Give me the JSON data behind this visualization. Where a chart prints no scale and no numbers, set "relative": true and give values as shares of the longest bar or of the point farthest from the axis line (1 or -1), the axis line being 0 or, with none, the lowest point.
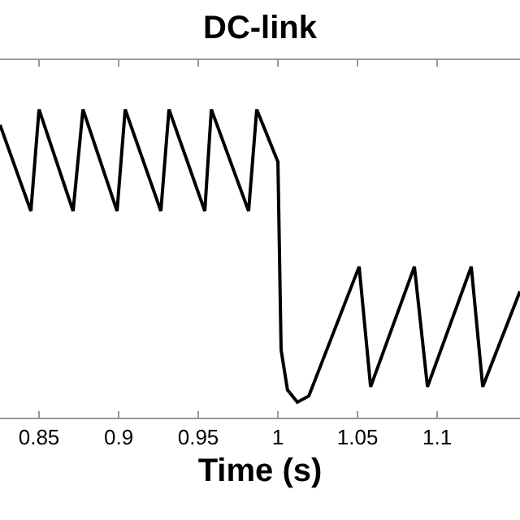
{
  "chart_data": {
    "type": "line",
    "title": "DC-link",
    "xlabel": "Time (s)",
    "relative": true,
    "color": "#000000",
    "x": [
      0.8255,
      0.8449,
      0.85,
      0.8714,
      0.8776,
      0.899,
      0.9041,
      0.9265,
      0.9316,
      0.9541,
      0.9582,
      0.9816,
      0.9867,
      1.0,
      1.002,
      1.006,
      1.0122,
      1.0194,
      1.051,
      1.0582,
      1.0857,
      1.0939,
      1.1214,
      1.1286,
      1.152
    ],
    "values": [
      0.95,
      0.67,
      1.0,
      0.67,
      1.0,
      0.67,
      1.0,
      0.67,
      1.0,
      0.67,
      1.0,
      0.67,
      1.0,
      0.83,
      0.22,
      0.09,
      0.05,
      0.07,
      0.49,
      0.1,
      0.49,
      0.1,
      0.49,
      0.1,
      0.41
    ],
    "xlim": [
      0.8255,
      1.152
    ],
    "xticks": [
      0.85,
      0.9,
      0.95,
      1,
      1.05,
      1.1
    ],
    "marker": "none",
    "line_style": "solid"
  }
}
